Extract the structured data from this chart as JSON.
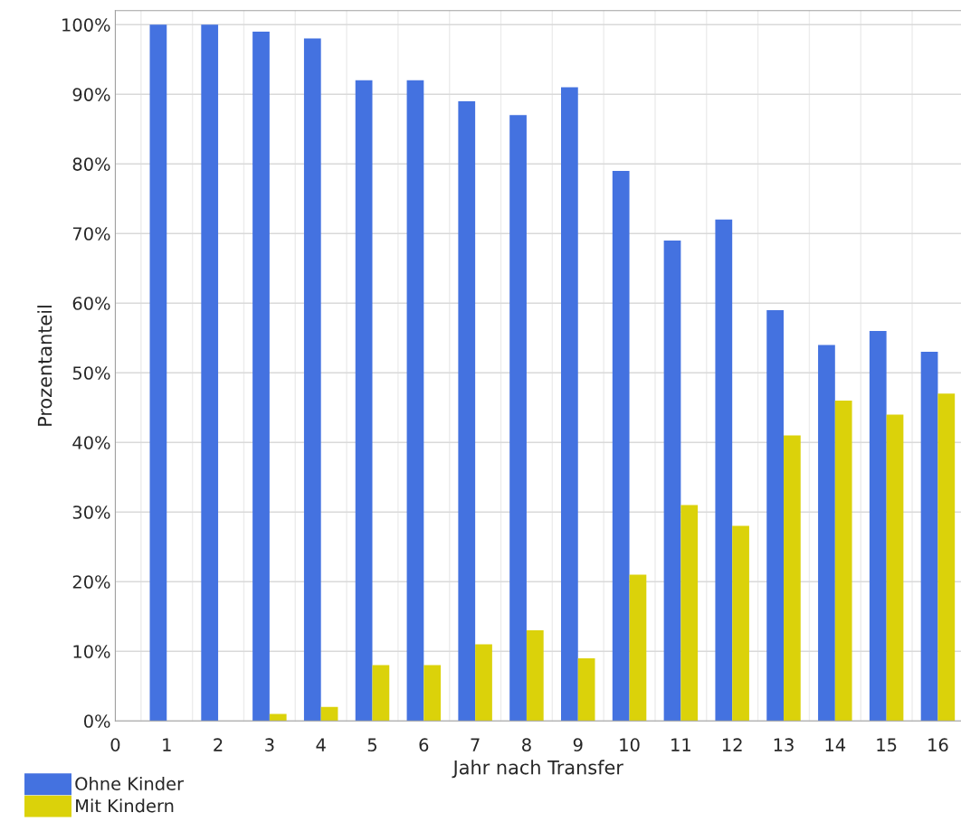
{
  "chart_data": {
    "type": "bar",
    "xlabel": "Jahr nach Transfer",
    "ylabel": "Prozentanteil",
    "x": [
      1,
      2,
      3,
      4,
      5,
      6,
      7,
      8,
      9,
      10,
      11,
      12,
      13,
      14,
      15,
      16
    ],
    "series": [
      {
        "name": "Ohne Kinder",
        "color": "#4472e0",
        "values": [
          100,
          100,
          99,
          98,
          92,
          92,
          89,
          87,
          91,
          79,
          69,
          72,
          59,
          54,
          56,
          53
        ]
      },
      {
        "name": "Mit Kindern",
        "color": "#dbd20a",
        "values": [
          null,
          null,
          1,
          2,
          8,
          8,
          11,
          13,
          9,
          21,
          31,
          28,
          41,
          46,
          44,
          47
        ]
      }
    ],
    "xlim": [
      0,
      16.45
    ],
    "xticks": [
      0,
      1,
      2,
      3,
      4,
      5,
      6,
      7,
      8,
      9,
      10,
      11,
      12,
      13,
      14,
      15,
      16
    ],
    "ylim": [
      0,
      102
    ],
    "yticks": [
      {
        "value": 0,
        "label": "0%"
      },
      {
        "value": 10,
        "label": "10%"
      },
      {
        "value": 20,
        "label": "20%"
      },
      {
        "value": 30,
        "label": "30%"
      },
      {
        "value": 40,
        "label": "40%"
      },
      {
        "value": 50,
        "label": "50%"
      },
      {
        "value": 60,
        "label": "60%"
      },
      {
        "value": 70,
        "label": "70%"
      },
      {
        "value": 80,
        "label": "80%"
      },
      {
        "value": 90,
        "label": "90%"
      },
      {
        "value": 100,
        "label": "100%"
      }
    ],
    "grid": "y",
    "legend": "bottom left"
  }
}
